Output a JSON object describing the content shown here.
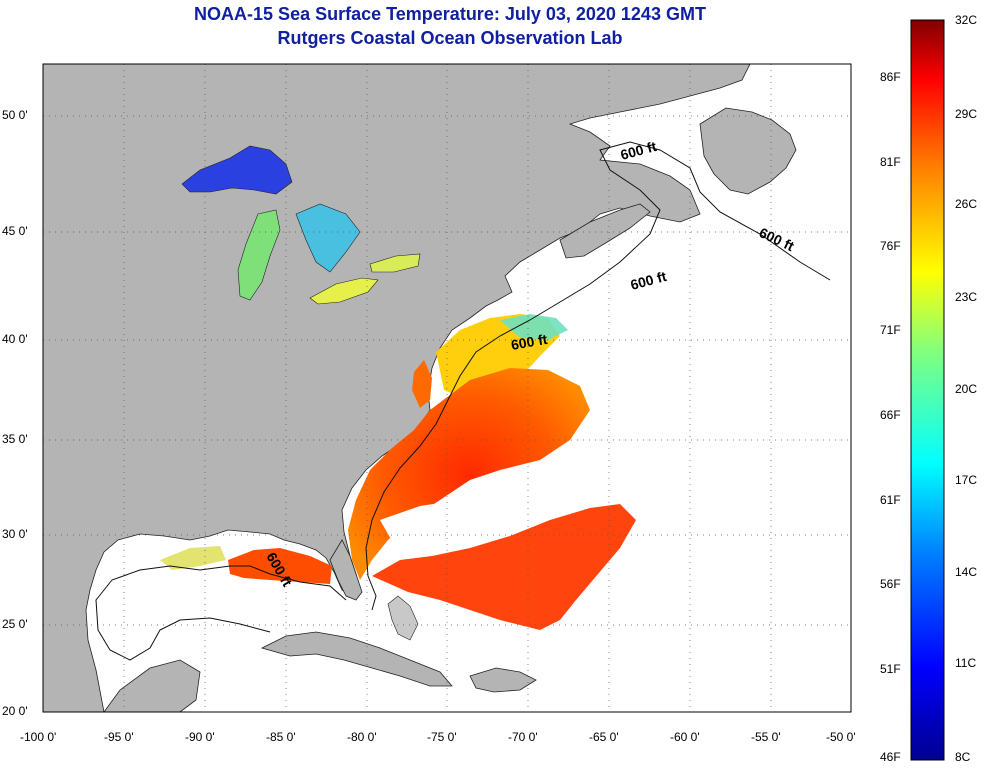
{
  "title": "NOAA-15 Sea Surface Temperature:  July 03, 2020 1243 GMT",
  "subtitle": "Rutgers Coastal Ocean Observation Lab",
  "map": {
    "lon_ticks": [
      "-100 0'",
      "-95 0'",
      "-90 0'",
      "-85 0'",
      "-80 0'",
      "-75 0'",
      "-70 0'",
      "-65 0'",
      "-60 0'",
      "-55 0'",
      "-50 0'"
    ],
    "lat_ticks": [
      "50 0'",
      "45 0'",
      "40 0'",
      "35 0'",
      "30 0'",
      "25 0'",
      "20 0'"
    ],
    "contour_labels": [
      "600 ft",
      "600 ft",
      "600 ft",
      "600 ft",
      "600 ft"
    ],
    "land_color": "#b4b4b4",
    "no_data_color": "#ffffff"
  },
  "colorbar": {
    "celsius": [
      "32C",
      "29C",
      "26C",
      "23C",
      "20C",
      "17C",
      "14C",
      "11C",
      "8C"
    ],
    "fahrenheit": [
      "86F",
      "81F",
      "76F",
      "71F",
      "66F",
      "61F",
      "56F",
      "51F",
      "46F"
    ],
    "colors": [
      "#00008f",
      "#0000ff",
      "#0080ff",
      "#00ffff",
      "#80ff80",
      "#ffff00",
      "#ff8000",
      "#ff0000",
      "#800000"
    ]
  }
}
